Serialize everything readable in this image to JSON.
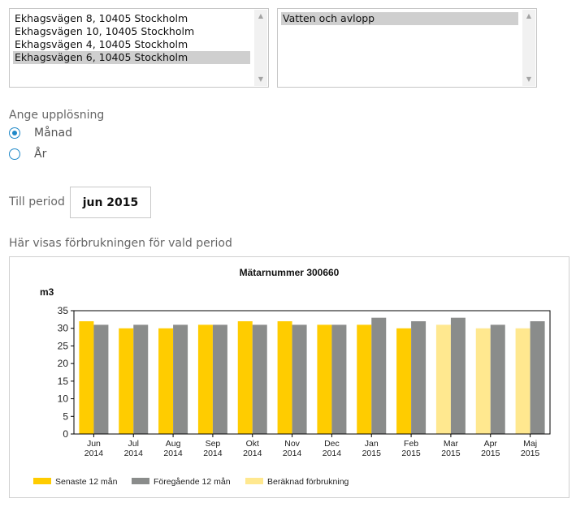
{
  "addresses": {
    "items": [
      "Ekhagsvägen 8, 10405 Stockholm",
      "Ekhagsvägen 10, 10405 Stockholm",
      "Ekhagsvägen 4, 10405 Stockholm",
      "Ekhagsvägen 6, 10405 Stockholm"
    ],
    "selected_index": 3
  },
  "services": {
    "items": [
      "Vatten och avlopp"
    ],
    "selected_index": 0
  },
  "resolution": {
    "label": "Ange upplösning",
    "options": [
      {
        "label": "Månad",
        "checked": true
      },
      {
        "label": "År",
        "checked": false
      }
    ]
  },
  "period": {
    "label": "Till period",
    "value": "jun 2015"
  },
  "consumption_heading": "Här visas förbrukningen för vald period",
  "colors": {
    "current": "#ffcc00",
    "previous": "#8a8c8b",
    "estimated": "#ffe88f",
    "radio": "#1e88c8"
  },
  "chart_data": {
    "type": "bar",
    "title": "Mätarnummer 300660",
    "ylabel": "m3",
    "ylim": [
      0,
      35
    ],
    "yticks": [
      0,
      5,
      10,
      15,
      20,
      25,
      30,
      35
    ],
    "categories": [
      [
        "Jun",
        "2014"
      ],
      [
        "Jul",
        "2014"
      ],
      [
        "Aug",
        "2014"
      ],
      [
        "Sep",
        "2014"
      ],
      [
        "Okt",
        "2014"
      ],
      [
        "Nov",
        "2014"
      ],
      [
        "Dec",
        "2014"
      ],
      [
        "Jan",
        "2015"
      ],
      [
        "Feb",
        "2015"
      ],
      [
        "Mar",
        "2015"
      ],
      [
        "Apr",
        "2015"
      ],
      [
        "Maj",
        "2015"
      ]
    ],
    "series": [
      {
        "name": "Senaste 12 mån",
        "values": [
          32,
          30,
          30,
          31,
          32,
          32,
          31,
          31,
          30,
          31,
          30,
          30
        ],
        "estimated": [
          false,
          false,
          false,
          false,
          false,
          false,
          false,
          false,
          false,
          true,
          true,
          true
        ]
      },
      {
        "name": "Föregående 12 mån",
        "values": [
          31,
          31,
          31,
          31,
          31,
          31,
          31,
          33,
          32,
          33,
          31,
          32
        ]
      }
    ],
    "legend": [
      "Senaste 12 mån",
      "Föregående 12 mån",
      "Beräknad förbrukning"
    ],
    "legend_position": "bottom",
    "grid": false
  }
}
